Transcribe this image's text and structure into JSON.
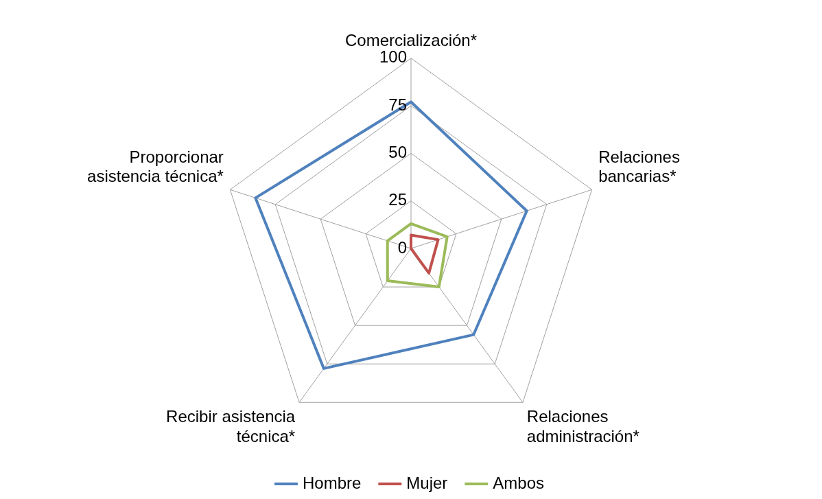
{
  "chart_data": {
    "type": "radar",
    "categories": [
      "Comercialización*",
      "Relaciones\nbancarias*",
      "Relaciones\nadministración*",
      "Recibir asistencia\ntécnica*",
      "Proporcionar\nasistencia técnica*"
    ],
    "series": [
      {
        "name": "Hombre",
        "color": "#4f81bd",
        "values": [
          77,
          64,
          56,
          78,
          86
        ]
      },
      {
        "name": "Mujer",
        "color": "#c0504d",
        "values": [
          7,
          15,
          16,
          0,
          0
        ]
      },
      {
        "name": "Ambos",
        "color": "#9bbb59",
        "values": [
          13,
          20,
          25,
          21,
          13
        ]
      }
    ],
    "ylim": [
      0,
      100
    ],
    "yticks": [
      0,
      25,
      50,
      75,
      100
    ],
    "grid": true,
    "legend": "bottom",
    "marker": "none"
  }
}
